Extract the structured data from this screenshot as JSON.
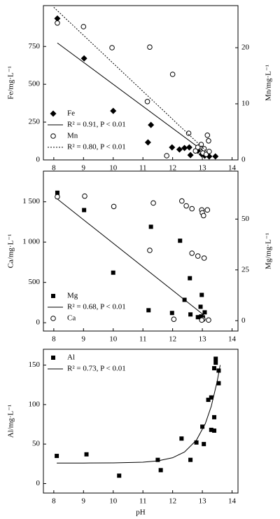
{
  "chart_data": [
    {
      "type": "scatter",
      "ylabel": "Fe/mg·L⁻¹",
      "y2label": "Mn/mg·L⁻¹",
      "xlim": [
        7.65,
        14.2
      ],
      "xticks": [
        8,
        9,
        10,
        11,
        12,
        13,
        14
      ],
      "ylim": [
        0,
        1020
      ],
      "yticks": [
        0,
        250,
        500,
        750
      ],
      "y2lim": [
        0,
        27.5
      ],
      "y2ticks": [
        0,
        10,
        20
      ],
      "legend": "lower-left",
      "series": [
        {
          "name": "Fe",
          "type": "points",
          "marker": "diamond",
          "color": "#000",
          "x": [
            8.12,
            9.02,
            10.0,
            11.17,
            11.27,
            11.98,
            12.23,
            12.4,
            12.56,
            12.6,
            12.85,
            12.98,
            13.08,
            13.23,
            13.44
          ],
          "values": [
            935,
            671,
            324,
            116,
            231,
            83,
            69,
            79,
            83,
            32,
            60,
            37,
            28,
            23,
            23
          ]
        },
        {
          "name": "R² = 0.91, P < 0.01",
          "type": "line",
          "style": "solid",
          "color": "#000",
          "x": [
            8.12,
            13.3
          ],
          "values": [
            773,
            20
          ]
        },
        {
          "name": "Mn",
          "type": "points",
          "marker": "circle-open",
          "color": "#000",
          "axis": "y2",
          "x": [
            8.12,
            9.0,
            9.96,
            11.23,
            11.15,
            12.0,
            11.8,
            12.54,
            12.77,
            12.85,
            12.96,
            13.02,
            13.06,
            13.13,
            13.17,
            13.21,
            13.23
          ],
          "values": [
            24.4,
            23.75,
            20.0,
            20.1,
            10.4,
            15.25,
            0.75,
            4.75,
            1.6,
            2.25,
            2.75,
            1.25,
            2.0,
            1.0,
            4.4,
            3.4,
            1.5
          ]
        },
        {
          "name": "R² = 0.80, P < 0.01",
          "type": "line",
          "style": "dotted",
          "color": "#000",
          "axis": "y2",
          "x": [
            8.0,
            13.3
          ],
          "values": [
            27.2,
            0.75
          ]
        }
      ]
    },
    {
      "type": "scatter",
      "ylabel": "Ca/mg·L⁻¹",
      "y2label": "Mg/mg·L⁻¹",
      "xlim": [
        7.65,
        14.2
      ],
      "xticks": [
        8,
        9,
        10,
        11,
        12,
        13,
        14
      ],
      "ylim": [
        -103,
        1880
      ],
      "yticks": [
        0,
        500,
        {
          "value": 1000,
          "label": "1 000"
        },
        {
          "value": 1500,
          "label": "1 500"
        }
      ],
      "y2lim": [
        -5.1,
        73.6
      ],
      "y2ticks": [
        0,
        25,
        50
      ],
      "legend": "lower-left",
      "series": [
        {
          "name": "Mg",
          "type": "points",
          "marker": "square",
          "color": "#000",
          "x": [
            8.12,
            9.02,
            10.0,
            11.19,
            11.27,
            11.98,
            12.25,
            12.4,
            12.58,
            12.6,
            12.85,
            12.94,
            12.98,
            13.02,
            13.08,
            12.96
          ],
          "values": [
            1612,
            1397,
            621,
            155,
            1190,
            121,
            1017,
            284,
            552,
            103,
            69,
            198,
            345,
            60,
            129,
            78
          ]
        },
        {
          "name": "R² = 0.68, P < 0.01",
          "type": "line",
          "style": "solid",
          "color": "#000",
          "x": [
            8.12,
            13.08
          ],
          "values": [
            1534,
            86
          ]
        },
        {
          "name": "Ca",
          "type": "points",
          "marker": "circle-open",
          "color": "#000",
          "axis": "y2",
          "x": [
            8.12,
            9.04,
            10.02,
            11.23,
            11.35,
            12.04,
            12.31,
            12.46,
            12.65,
            12.65,
            12.85,
            12.98,
            13.0,
            13.04,
            13.06,
            13.17,
            13.02,
            12.98,
            13.21
          ],
          "values": [
            61,
            61.3,
            56.2,
            34.6,
            57.9,
            0.7,
            58.9,
            56.5,
            55.1,
            33.2,
            31.8,
            54.5,
            53.1,
            51.7,
            30.8,
            54.5,
            0.7,
            0.3,
            0.3
          ]
        }
      ]
    },
    {
      "type": "scatter",
      "ylabel": "Al/mg·L⁻¹",
      "xlabel": "pH",
      "xlim": [
        7.65,
        14.2
      ],
      "xticks": [
        8,
        9,
        10,
        11,
        12,
        13,
        14
      ],
      "ylim": [
        -12,
        170
      ],
      "yticks": [
        0,
        50,
        100,
        150
      ],
      "legend": "upper-left",
      "series": [
        {
          "name": "Al",
          "type": "points",
          "marker": "square",
          "color": "#000",
          "x": [
            8.1,
            9.1,
            10.2,
            11.5,
            11.6,
            12.3,
            12.6,
            12.8,
            13.0,
            13.05,
            13.2,
            13.3,
            13.3,
            13.4,
            13.4,
            13.4,
            13.45,
            13.45,
            13.55,
            13.55
          ],
          "values": [
            35,
            37,
            10,
            30,
            17,
            57,
            30,
            52,
            72,
            50,
            106,
            68,
            109,
            146,
            84,
            67,
            153,
            158,
            143,
            127
          ]
        },
        {
          "name": "R² = 0.73, P < 0.01",
          "type": "line",
          "style": "solid",
          "color": "#000",
          "x": [
            8.1,
            9,
            10,
            11,
            11.5,
            12,
            12.4,
            12.8,
            13.1,
            13.3,
            13.5,
            13.6
          ],
          "values": [
            26.0,
            26.0,
            26.2,
            27.1,
            28.7,
            32.7,
            40.0,
            54.9,
            75.9,
            97.8,
            129.4,
            150
          ]
        }
      ]
    }
  ]
}
